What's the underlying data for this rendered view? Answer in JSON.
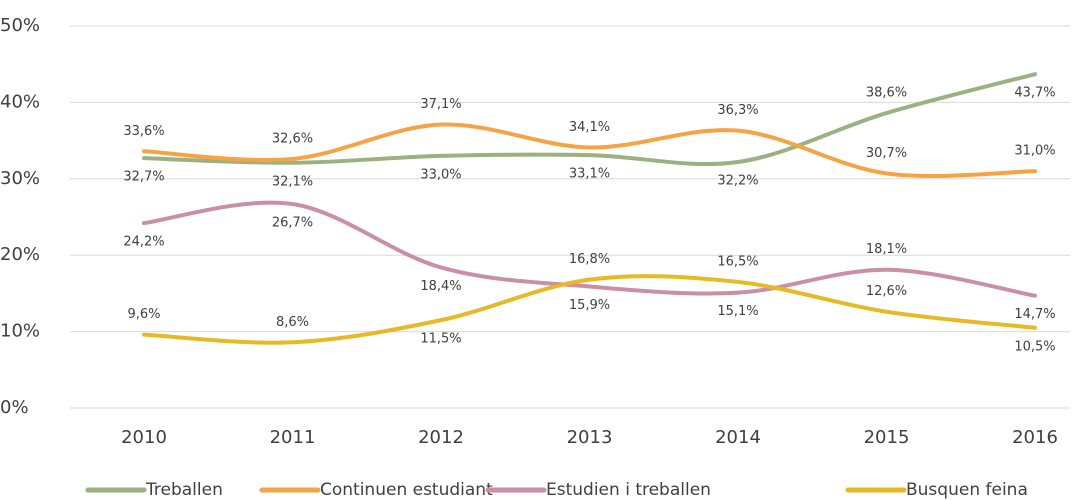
{
  "chart_data": {
    "type": "line",
    "categories": [
      "2010",
      "2011",
      "2012",
      "2013",
      "2014",
      "2015",
      "2016"
    ],
    "series": [
      {
        "name": "Treballen",
        "color": "#9bb181",
        "values": [
          32.7,
          32.1,
          33.0,
          33.1,
          32.2,
          38.6,
          43.7
        ],
        "value_labels": [
          "32,7%",
          "32,1%",
          "33,0%",
          "33,1%",
          "32,2%",
          "38,6%",
          "43,7%"
        ]
      },
      {
        "name": "Continuen estudiant",
        "color": "#f5a343",
        "values": [
          33.6,
          32.6,
          37.1,
          34.1,
          36.3,
          30.7,
          31.0
        ],
        "value_labels": [
          "33,6%",
          "32,6%",
          "37,1%",
          "34,1%",
          "36,3%",
          "30,7%",
          "31,0%"
        ]
      },
      {
        "name": "Estudien i treballen",
        "color": "#c98ea8",
        "values": [
          24.2,
          26.7,
          18.4,
          15.9,
          15.1,
          18.1,
          14.7
        ],
        "value_labels": [
          "24,2%",
          "26,7%",
          "18,4%",
          "15,9%",
          "15,1%",
          "18,1%",
          "14,7%"
        ]
      },
      {
        "name": "Busquen feina",
        "color": "#e6b925",
        "values": [
          9.6,
          8.6,
          11.5,
          16.8,
          16.5,
          12.6,
          10.5
        ],
        "value_labels": [
          "9,6%",
          "8,6%",
          "11,5%",
          "16,8%",
          "16,5%",
          "12,6%",
          "10,5%"
        ]
      }
    ],
    "ylim": [
      0,
      50
    ],
    "yticks": [
      {
        "value": 0,
        "label": "0%"
      },
      {
        "value": 10,
        "label": "10%"
      },
      {
        "value": 20,
        "label": "20%"
      },
      {
        "value": 30,
        "label": "30%"
      },
      {
        "value": 40,
        "label": "40%"
      },
      {
        "value": 50,
        "label": "50%"
      }
    ],
    "grid": true,
    "legend": "bottom"
  }
}
